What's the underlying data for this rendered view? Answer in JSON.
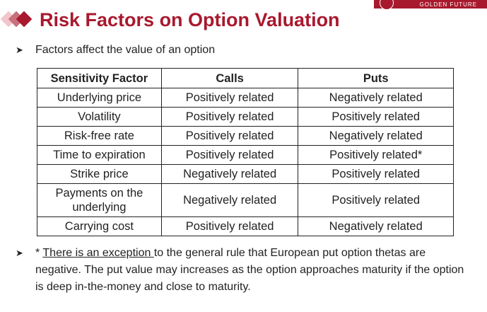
{
  "brand": {
    "name": "GOLDEN FUTURE",
    "color": "#a8192e"
  },
  "title": "Risk Factors on Option Valuation",
  "bullet": "Factors affect the value of an option",
  "table": {
    "headers": [
      "Sensitivity Factor",
      "Calls",
      "Puts"
    ],
    "rows": [
      [
        "Underlying price",
        "Positively related",
        "Negatively related"
      ],
      [
        "Volatility",
        "Positively related",
        "Positively related"
      ],
      [
        "Risk-free rate",
        "Positively related",
        "Negatively related"
      ],
      [
        "Time to expiration",
        "Positively related",
        "Positively related*"
      ],
      [
        "Strike price",
        "Negatively related",
        "Positively related"
      ],
      [
        "Payments on the underlying",
        "Negatively related",
        "Positively related"
      ],
      [
        "Carrying cost",
        "Positively related",
        "Negatively related"
      ]
    ]
  },
  "note": {
    "prefix": "* ",
    "link": "There is an exception ",
    "rest": "to the general rule that European put option thetas are negative. The put value may increases as the option approaches maturity if the option is deep in-the-money and close to maturity."
  }
}
